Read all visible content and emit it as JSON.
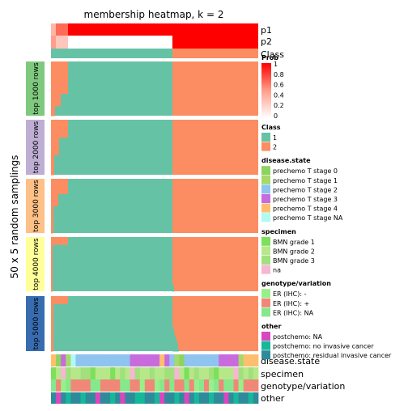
{
  "chart_data": {
    "type": "heatmap",
    "title": "membership heatmap, k = 2",
    "ylabel": "50 x 5 random samplings",
    "top_annotations": [
      "p1",
      "p2",
      "Class"
    ],
    "groups": [
      "top 1000 rows",
      "top 2000 rows",
      "top 3000 rows",
      "top 4000 rows",
      "top 5000 rows"
    ],
    "bottom_annotations": [
      "disease.state",
      "specimen",
      "genotype/variation",
      "other"
    ],
    "class_colors": {
      "1": "#66C2A5",
      "2": "#FC8D62"
    },
    "group_colors": [
      "#7FC97F",
      "#BEAED4",
      "#FDC086",
      "#FFFF99",
      "#386CB0"
    ],
    "prob_scale": {
      "title": "Prob",
      "ticks": [
        1,
        0.8,
        0.6,
        0.4,
        0.2,
        0
      ]
    },
    "legends": [
      {
        "title": "Class",
        "items": [
          {
            "label": "1",
            "color": "#66C2A5"
          },
          {
            "label": "2",
            "color": "#FC8D62"
          }
        ]
      },
      {
        "title": "disease.state",
        "items": [
          {
            "label": "prechemo T stage 0",
            "color": "#8DD35F"
          },
          {
            "label": "prechemo T stage 1",
            "color": "#A5D96A"
          },
          {
            "label": "prechemo T stage 2",
            "color": "#8FC3F0"
          },
          {
            "label": "prechemo T stage 3",
            "color": "#C86BDD"
          },
          {
            "label": "prechemo T stage 4",
            "color": "#FDBF6F"
          },
          {
            "label": "prechemo T stage NA",
            "color": "#AFFAF4"
          }
        ]
      },
      {
        "title": "specimen",
        "items": [
          {
            "label": "BMN grade 1",
            "color": "#7CE05A"
          },
          {
            "label": "BMN grade 2",
            "color": "#B6E88A"
          },
          {
            "label": "BMN grade 3",
            "color": "#A1E07C"
          },
          {
            "label": "na",
            "color": "#F7B6D2"
          }
        ]
      },
      {
        "title": "genotype/variation",
        "items": [
          {
            "label": "ER (IHC): -",
            "color": "#98F08A"
          },
          {
            "label": "ER (IHC): +",
            "color": "#F08878"
          },
          {
            "label": "ER (IHC): NA",
            "color": "#86E88C"
          }
        ]
      },
      {
        "title": "other",
        "items": [
          {
            "label": "postchemo: NA",
            "color": "#D946C0"
          },
          {
            "label": "postchemo: no invasive cancer",
            "color": "#16B89A"
          },
          {
            "label": "postchemo: residual invasive cancer",
            "color": "#2F8A9A"
          }
        ]
      }
    ]
  }
}
